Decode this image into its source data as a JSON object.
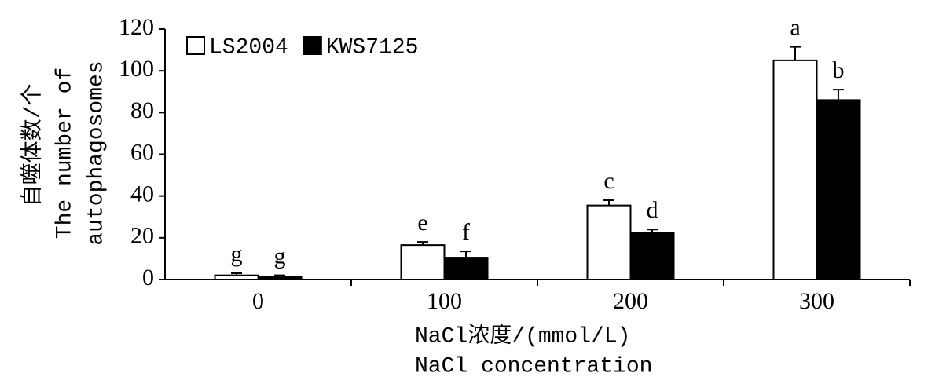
{
  "chart_data": {
    "type": "bar",
    "y_label": [
      "自噬体数/个",
      "The number of",
      "autophagosomes"
    ],
    "x_label": [
      "NaCl浓度/(mmol/L)",
      "NaCl concentration"
    ],
    "categories": [
      "0",
      "100",
      "200",
      "300"
    ],
    "series": [
      {
        "name": "LS2004",
        "color": "#ffffff",
        "values": [
          2,
          16.5,
          35.5,
          105
        ],
        "errors": [
          1,
          1.5,
          2.5,
          6.5
        ],
        "significance": [
          "g",
          "e",
          "c",
          "a"
        ]
      },
      {
        "name": "KWS7125",
        "color": "#000000",
        "values": [
          1.5,
          10.5,
          22.5,
          86
        ],
        "errors": [
          0.5,
          3,
          1.5,
          5
        ],
        "significance": [
          "g",
          "f",
          "d",
          "b"
        ]
      }
    ],
    "ylim": [
      0,
      120
    ],
    "yticks": [
      0,
      20,
      40,
      60,
      80,
      100,
      120
    ],
    "legend": "upper left"
  }
}
